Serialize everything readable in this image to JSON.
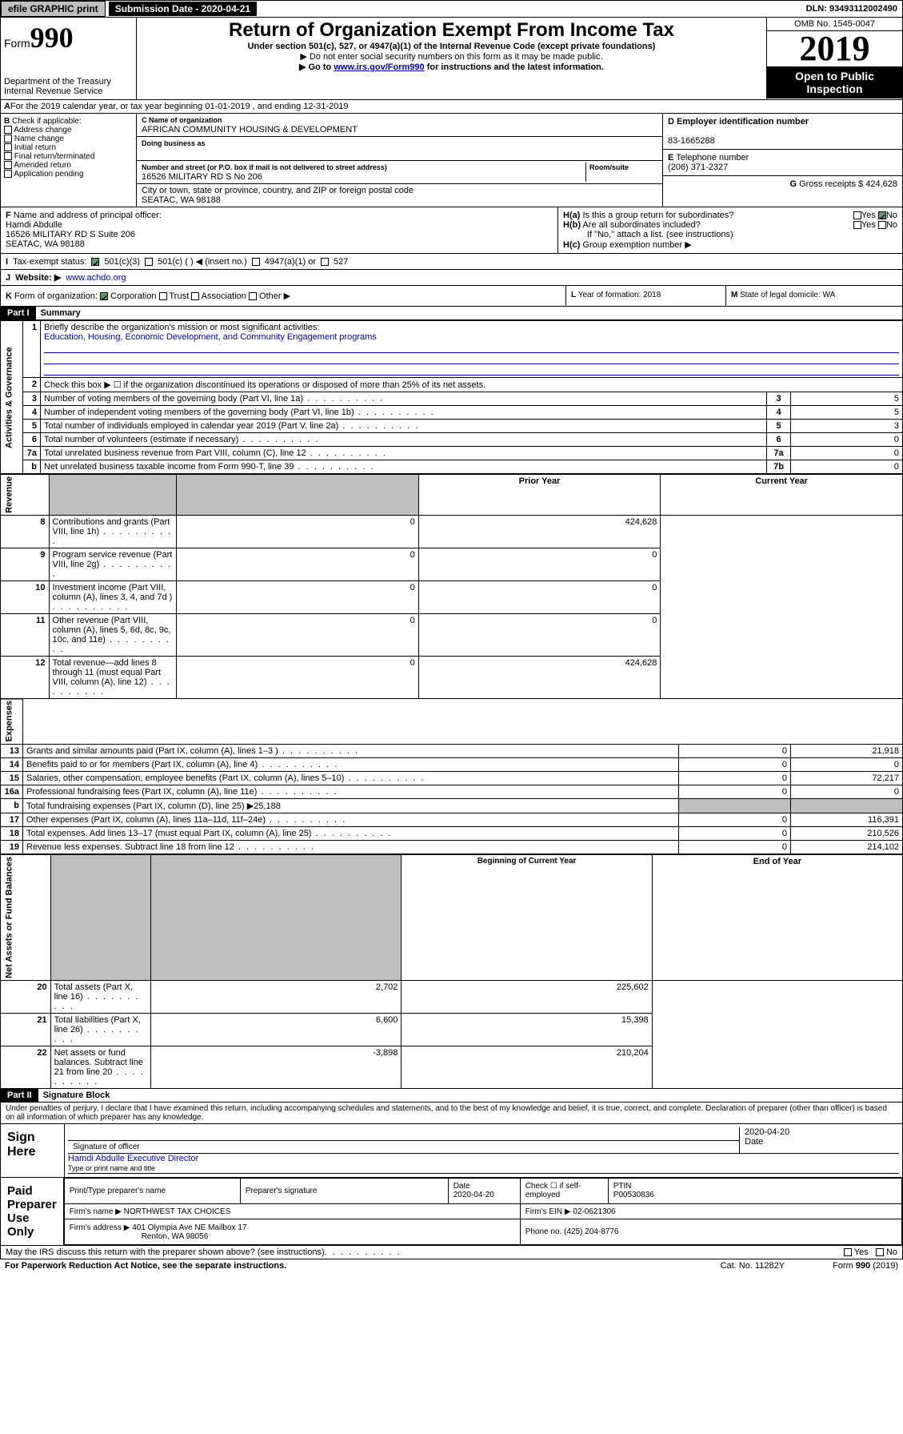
{
  "top": {
    "efile": "efile GRAPHIC print",
    "subdate_label": "Submission Date - 2020-04-21",
    "dln": "DLN: 93493112002490"
  },
  "header": {
    "form_prefix": "Form",
    "form_num": "990",
    "dept": "Department of the Treasury",
    "irs": "Internal Revenue Service",
    "title": "Return of Organization Exempt From Income Tax",
    "sub": "Under section 501(c), 527, or 4947(a)(1) of the Internal Revenue Code (except private foundations)",
    "sub2": "Do not enter social security numbers on this form as it may be made public.",
    "sub3_pre": "Go to ",
    "sub3_link": "www.irs.gov/Form990",
    "sub3_post": " for instructions and the latest information.",
    "omb": "OMB No. 1545-0047",
    "year": "2019",
    "open": "Open to Public Inspection"
  },
  "a": {
    "text": "For the 2019 calendar year, or tax year beginning 01-01-2019   , and ending 12-31-2019"
  },
  "b": {
    "label": "Check if applicable:",
    "opts": [
      "Address change",
      "Name change",
      "Initial return",
      "Final return/terminated",
      "Amended return",
      "Application pending"
    ]
  },
  "c": {
    "name_label": "Name of organization",
    "name": "AFRICAN COMMUNITY HOUSING & DEVELOPMENT",
    "dba_label": "Doing business as",
    "addr_label": "Number and street (or P.O. box if mail is not delivered to street address)",
    "room_label": "Room/suite",
    "addr": "16526 MILITARY RD S No 206",
    "city_label": "City or town, state or province, country, and ZIP or foreign postal code",
    "city": "SEATAC, WA  98188"
  },
  "d": {
    "label": "Employer identification number",
    "val": "83-1665288"
  },
  "e": {
    "label": "Telephone number",
    "val": "(206) 371-2327"
  },
  "g": {
    "label": "Gross receipts $",
    "val": "424,628"
  },
  "f": {
    "label": "Name and address of principal officer:",
    "name": "Hamdi Abdulle",
    "addr": "16526 MILITARY RD S Suite 206",
    "city": "SEATAC, WA  98188"
  },
  "h": {
    "a_label": "Is this a group return for subordinates?",
    "a_yes": "Yes",
    "a_no": "No",
    "b_label": "Are all subordinates included?",
    "b_yes": "Yes",
    "b_no": "No",
    "b_note": "If \"No,\" attach a list. (see instructions)",
    "c_label": "Group exemption number ▶"
  },
  "i": {
    "label": "Tax-exempt status:",
    "o1": "501(c)(3)",
    "o2": "501(c) (  ) ◀ (insert no.)",
    "o3": "4947(a)(1) or",
    "o4": "527"
  },
  "j": {
    "label": "Website: ▶",
    "val": "www.achdo.org"
  },
  "k": {
    "label": "Form of organization:",
    "o1": "Corporation",
    "o2": "Trust",
    "o3": "Association",
    "o4": "Other ▶"
  },
  "l": {
    "label": "Year of formation: 2018"
  },
  "m": {
    "label": "State of legal domicile: WA"
  },
  "part1": {
    "hdr": "Part I",
    "title": "Summary",
    "mission_q": "Briefly describe the organization's mission or most significant activities:",
    "mission": "Education, Housing, Economic Development, and Community Engagement programs",
    "l2": "Check this box ▶ ☐  if the organization discontinued its operations or disposed of more than 25% of its net assets.",
    "rows": [
      {
        "n": "3",
        "t": "Number of voting members of the governing body (Part VI, line 1a)",
        "rn": "3",
        "v": "5"
      },
      {
        "n": "4",
        "t": "Number of independent voting members of the governing body (Part VI, line 1b)",
        "rn": "4",
        "v": "5"
      },
      {
        "n": "5",
        "t": "Total number of individuals employed in calendar year 2019 (Part V, line 2a)",
        "rn": "5",
        "v": "3"
      },
      {
        "n": "6",
        "t": "Total number of volunteers (estimate if necessary)",
        "rn": "6",
        "v": "0"
      },
      {
        "n": "7a",
        "t": "Total unrelated business revenue from Part VIII, column (C), line 12",
        "rn": "7a",
        "v": "0"
      },
      {
        "n": "b",
        "t": "Net unrelated business taxable income from Form 990-T, line 39",
        "rn": "7b",
        "v": "0"
      }
    ],
    "prior_hdr": "Prior Year",
    "curr_hdr": "Current Year",
    "rev_rows": [
      {
        "n": "8",
        "t": "Contributions and grants (Part VIII, line 1h)",
        "p": "0",
        "c": "424,628"
      },
      {
        "n": "9",
        "t": "Program service revenue (Part VIII, line 2g)",
        "p": "0",
        "c": "0"
      },
      {
        "n": "10",
        "t": "Investment income (Part VIII, column (A), lines 3, 4, and 7d )",
        "p": "0",
        "c": "0"
      },
      {
        "n": "11",
        "t": "Other revenue (Part VIII, column (A), lines 5, 6d, 8c, 9c, 10c, and 11e)",
        "p": "0",
        "c": "0"
      },
      {
        "n": "12",
        "t": "Total revenue—add lines 8 through 11 (must equal Part VIII, column (A), line 12)",
        "p": "0",
        "c": "424,628"
      }
    ],
    "exp_rows": [
      {
        "n": "13",
        "t": "Grants and similar amounts paid (Part IX, column (A), lines 1–3 )",
        "p": "0",
        "c": "21,918"
      },
      {
        "n": "14",
        "t": "Benefits paid to or for members (Part IX, column (A), line 4)",
        "p": "0",
        "c": "0"
      },
      {
        "n": "15",
        "t": "Salaries, other compensation, employee benefits (Part IX, column (A), lines 5–10)",
        "p": "0",
        "c": "72,217"
      },
      {
        "n": "16a",
        "t": "Professional fundraising fees (Part IX, column (A), line 11e)",
        "p": "0",
        "c": "0"
      }
    ],
    "l16b": "Total fundraising expenses (Part IX, column (D), line 25) ▶25,188",
    "exp_rows2": [
      {
        "n": "17",
        "t": "Other expenses (Part IX, column (A), lines 11a–11d, 11f–24e)",
        "p": "0",
        "c": "116,391"
      },
      {
        "n": "18",
        "t": "Total expenses. Add lines 13–17 (must equal Part IX, column (A), line 25)",
        "p": "0",
        "c": "210,526"
      },
      {
        "n": "19",
        "t": "Revenue less expenses. Subtract line 18 from line 12",
        "p": "0",
        "c": "214,102"
      }
    ],
    "na_hdr1": "Beginning of Current Year",
    "na_hdr2": "End of Year",
    "na_rows": [
      {
        "n": "20",
        "t": "Total assets (Part X, line 16)",
        "p": "2,702",
        "c": "225,602"
      },
      {
        "n": "21",
        "t": "Total liabilities (Part X, line 26)",
        "p": "6,600",
        "c": "15,398"
      },
      {
        "n": "22",
        "t": "Net assets or fund balances. Subtract line 21 from line 20",
        "p": "-3,898",
        "c": "210,204"
      }
    ],
    "side_gov": "Activities & Governance",
    "side_rev": "Revenue",
    "side_exp": "Expenses",
    "side_na": "Net Assets or Fund Balances"
  },
  "part2": {
    "hdr": "Part II",
    "title": "Signature Block",
    "decl": "Under penalties of perjury, I declare that I have examined this return, including accompanying schedules and statements, and to the best of my knowledge and belief, it is true, correct, and complete. Declaration of preparer (other than officer) is based on all information of which preparer has any knowledge.",
    "sign_here": "Sign Here",
    "sig_officer": "Signature of officer",
    "sig_date": "2020-04-20",
    "date_lbl": "Date",
    "officer_name": "Hamdi Abdulle  Executive Director",
    "type_name": "Type or print name and title",
    "paid": "Paid Preparer Use Only",
    "prep_name_lbl": "Print/Type preparer's name",
    "prep_sig_lbl": "Preparer's signature",
    "prep_date_lbl": "Date",
    "prep_date": "2020-04-20",
    "check_lbl": "Check ☐ if self-employed",
    "ptin_lbl": "PTIN",
    "ptin": "P00530836",
    "firm_name_lbl": "Firm's name    ▶",
    "firm_name": "NORTHWEST TAX CHOICES",
    "firm_ein_lbl": "Firm's EIN ▶",
    "firm_ein": "02-0621306",
    "firm_addr_lbl": "Firm's address ▶",
    "firm_addr": "401 Olympia Ave NE Mailbox 17",
    "firm_city": "Renton, WA  98056",
    "phone_lbl": "Phone no.",
    "phone": "(425) 204-8776"
  },
  "footer": {
    "discuss": "May the IRS discuss this return with the preparer shown above? (see instructions)",
    "yes": "Yes",
    "no": "No",
    "paperwork": "For Paperwork Reduction Act Notice, see the separate instructions.",
    "cat": "Cat. No. 11282Y",
    "form": "Form 990 (2019)"
  }
}
